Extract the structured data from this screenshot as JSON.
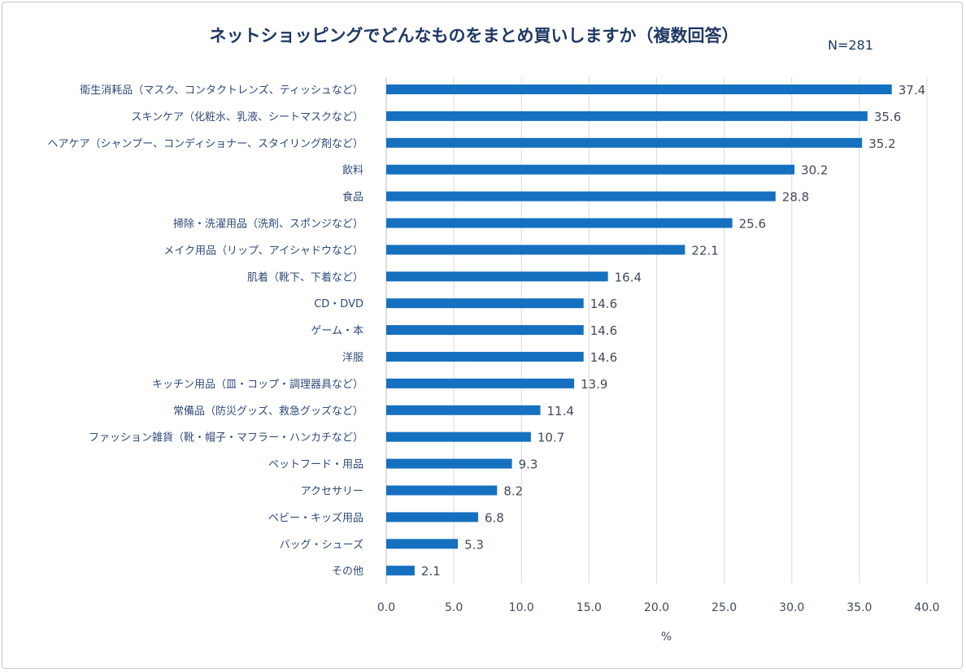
{
  "chart_data": {
    "type": "bar",
    "orientation": "horizontal",
    "title": "ネットショッピングでどんなものをまとめ買いしますか（複数回答）",
    "annotation": "N=281",
    "xlabel": "%",
    "ylabel": "",
    "xlim": [
      0,
      40
    ],
    "xticks": [
      "0.0",
      "5.0",
      "10.0",
      "15.0",
      "20.0",
      "25.0",
      "30.0",
      "35.0",
      "40.0"
    ],
    "grid": true,
    "bar_color": "#1670c0",
    "categories": [
      "衛生消耗品（マスク、コンタクトレンズ、ティッシュなど）",
      "スキンケア（化粧水、乳液、シートマスクなど）",
      "ヘアケア（シャンプー、コンディショナー、スタイリング剤など）",
      "飲料",
      "食品",
      "掃除・洗濯用品（洗剤、スポンジなど）",
      "メイク用品（リップ、アイシャドウなど）",
      "肌着（靴下、下着など）",
      "CD・DVD",
      "ゲーム・本",
      "洋服",
      "キッチン用品（皿・コップ・調理器具など）",
      "常備品（防災グッズ、救急グッズなど）",
      "ファッション雑貨（靴・帽子・マフラー・ハンカチなど）",
      "ペットフード・用品",
      "アクセサリー",
      "ベビー・キッズ用品",
      "バッグ・シューズ",
      "その他"
    ],
    "values": [
      37.4,
      35.6,
      35.2,
      30.2,
      28.8,
      25.6,
      22.1,
      16.4,
      14.6,
      14.6,
      14.6,
      13.9,
      11.4,
      10.7,
      9.3,
      8.2,
      6.8,
      5.3,
      2.1
    ],
    "value_labels": [
      "37.4",
      "35.6",
      "35.2",
      "30.2",
      "28.8",
      "25.6",
      "22.1",
      "16.4",
      "14.6",
      "14.6",
      "14.6",
      "13.9",
      "11.4",
      "10.7",
      "9.3",
      "8.2",
      "6.8",
      "5.3",
      "2.1"
    ]
  }
}
